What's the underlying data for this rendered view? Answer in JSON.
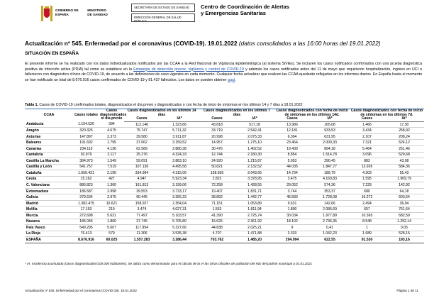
{
  "header": {
    "ministry": [
      "GOBIERNO DE ESPAÑA",
      "MINISTERIO DE SANIDAD"
    ],
    "boxes": [
      "SECRETARÍA DE ESTADO DE SANIDAD",
      "DIRECCIÓN GENERAL DE SALUD PÚBLICA"
    ],
    "center": [
      "Centro de Coordinación de Alertas",
      "y Emergencias Sanitarias"
    ]
  },
  "title": "Actualización nº 545. Enfermedad por el coronavirus (COVID-19). 19.01.2022",
  "title_note": "(datos consolidados a las 16:00 horas del 19.01.2022)",
  "section": "SITUACIÓN EN ESPAÑA",
  "paragraph": [
    "El presente informe se ha realizado con los datos individualizados notificados por las CCAA a la Red Nacional de Vigilancia Epidemiológica (al sistema SiViEs). Se incluyen los casos notificados confirmados con una prueba diagnóstica positiva de infección activa (PDIA) tal como se establece en la ",
    "Estrategia de detección precoz, vigilancia y control de COVID-19",
    " y además los casos notificados antes del 11 de mayo que requirieron hospitalización, ingreso en UCI o fallecieron con diagnóstico clínico de COVID-19, de acuerdo a las definiciones de caso vigentes en cada momento. Cualquier fecha actualizar que realicen las CCAA quedarán reflejadas en los informes diarios. En España hasta el momento se han notificado un total de 8.676.916 casos confirmados de COVID-19 y 91.437 fallecidos. Los datos se pueden obtener ",
    "aquí",
    "."
  ],
  "table": {
    "caption_label": "Tabla 1.",
    "caption": "Casos de COVID-19 confirmados totales, diagnosticados el día previo y diagnosticados o con fecha de inicio de síntomas en los últimos 14 y 7 días a 18.01.2022",
    "headers": [
      "CCAA",
      "Casos totales",
      "Casos diagnosticados el día previo"
    ],
    "groups": [
      "Casos diagnosticados en los últimos 14 días",
      "Casos diagnosticados en los últimos 7 días",
      "Casos diagnosticados con fecha de inicio de síntomas en los últimos 14d.",
      "Casos diagnosticados con fecha de inicio de síntomas en los últimos 7d."
    ],
    "subheaders": [
      "Casos",
      "IA*"
    ],
    "rows": [
      [
        "Andalucía",
        "1.154.526",
        "394",
        "112.146",
        "1.323,66",
        "43.818",
        "517,18",
        "13.986",
        "165,08",
        "1.466",
        "17,30"
      ],
      [
        "Aragón",
        "320.326",
        "4.675",
        "75.747",
        "5.711,32",
        "33.719",
        "2.542,41",
        "12.181",
        "933,53",
        "3.434",
        "258,92"
      ],
      [
        "Asturias",
        "147.897",
        "3.373",
        "39.580",
        "3.911,87",
        "20.998",
        "2.075,33",
        "6.394",
        "631,95",
        "2.107",
        "208,24"
      ],
      [
        "Baleares",
        "191.692",
        "1.795",
        "37.062",
        "3.159,52",
        "14.957",
        "1.275,10",
        "23.464",
        "2.000,33",
        "7.321",
        "624,12"
      ],
      [
        "Canarias",
        "234.119",
        "4.136",
        "62.589",
        "2.880,38",
        "30.476",
        "1.402,52",
        "19.430",
        "894,18",
        "5.464",
        "251,46"
      ],
      [
        "Cantabria",
        "92.979",
        "2.117",
        "25.276",
        "4.324,33",
        "12.744",
        "2.180,30",
        "8.854",
        "1.514,78",
        "3.096",
        "529,68"
      ],
      [
        "Castilla La Mancha",
        "384.973",
        "1.549",
        "59.091",
        "2.883,10",
        "24.920",
        "1.215,87",
        "5.953",
        "290,45",
        "883",
        "43,08"
      ],
      [
        "Castilla y León",
        "541.757",
        "7.519",
        "107.136",
        "4.495,58",
        "50.821",
        "2.132,52",
        "44.035",
        "1.847,77",
        "13.926",
        "584,36"
      ],
      [
        "Cataluña",
        "1.656.421",
        "2.190",
        "334.994",
        "4.315,06",
        "158.656",
        "2.043,65",
        "14.734",
        "189,79",
        "4.303",
        "55,43"
      ],
      [
        "Ceuta",
        "15.162",
        "427",
        "4.947",
        "5.923,34",
        "2.822",
        "3.378,95",
        "3.475",
        "4.160,83",
        "1.595",
        "1.909,79"
      ],
      [
        "C. Valenciana",
        "886.823",
        "1.360",
        "161.813",
        "3.199,06",
        "72.258",
        "1.428,55",
        "29.052",
        "574,36",
        "7.229",
        "142,92"
      ],
      [
        "Extremadura",
        "186.587",
        "2.998",
        "39.553",
        "3.733,17",
        "19.407",
        "1.831,71",
        "3.744",
        "353,37",
        "680",
        "64,18"
      ],
      [
        "Galicia",
        "379.534",
        "2.975",
        "90.445",
        "3.355,23",
        "38.892",
        "1.442,77",
        "46.583",
        "1.728,08",
        "16.272",
        "603,64"
      ],
      [
        "Madrid",
        "1.382.475",
        "10.621",
        "158.927",
        "2.354,04",
        "71.151",
        "1.053,89",
        "9.631",
        "142,66",
        "2.494",
        "36,94"
      ],
      [
        "Melilla",
        "17.193",
        "219",
        "3.474",
        "4.027,31",
        "1.563",
        "1.811,94",
        "1.800",
        "2.086,69",
        "657",
        "761,64"
      ],
      [
        "Murcia",
        "272.698",
        "5.631",
        "77.497",
        "5.103,57",
        "41.390",
        "2.725,74",
        "30.034",
        "1.977,89",
        "10.365",
        "682,59"
      ],
      [
        "Navarra",
        "186.046",
        "1.860",
        "37.746",
        "5.705,80",
        "15.625",
        "2.361,92",
        "18.102",
        "2.736,35",
        "8.548",
        "1.292,14"
      ],
      [
        "País Vasco",
        "549.295",
        "5.607",
        "117.954",
        "5.327,66",
        "44.838",
        "2.025,21",
        "9",
        "0,41",
        "1",
        "0,05"
      ],
      [
        "La Rioja",
        "76.413",
        "579",
        "11.306",
        "3.535,38",
        "4.707",
        "1.471,88",
        "3.333",
        "1.042,23",
        "1.689",
        "528,15"
      ]
    ],
    "total": [
      "ESPAÑA",
      "8.676.916",
      "60.025",
      "1.557.283",
      "3.286,44",
      "703.762",
      "1.485,20",
      "294.994",
      "622,55",
      "91.530",
      "193,16"
    ],
    "footnote": "* IA: Incidencia acumulada (casos diagnosticados/100.000 habitantes). Se utiliza como denominador para el cálculo de la IA las cifras oficiales de población del INE del padrón municipal a 01.01.2021"
  },
  "footer": {
    "left": "Actualización nº 545. Enfermedad por el coronavirus (COVID-19). 19.01.2022",
    "right": "Página 1 de 11"
  }
}
